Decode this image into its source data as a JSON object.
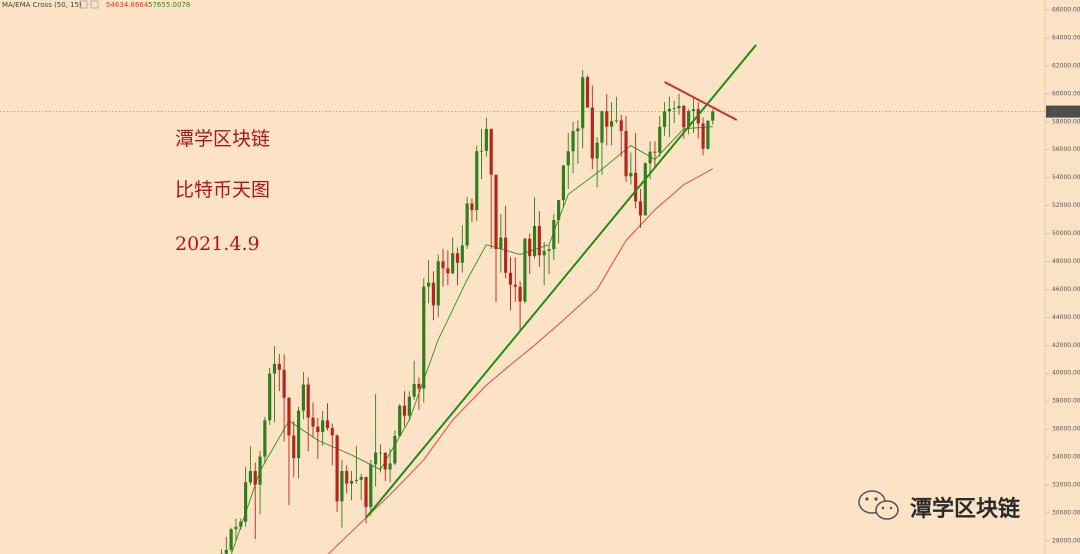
{
  "chart_data": {
    "type": "candlestick",
    "indicator": "MA/EMA Cross (50, 15)",
    "up_color": "#2f7d1f",
    "down_color": "#b3261e",
    "ylim": [
      27060,
      66716
    ],
    "xlim": [
      -46,
      171
    ],
    "yticks": [
      {
        "value": 28000,
        "label": "28000.00"
      },
      {
        "value": 30000,
        "label": "30000.00"
      },
      {
        "value": 32000,
        "label": "32000.00"
      },
      {
        "value": 34000,
        "label": "34000.00"
      },
      {
        "value": 36000,
        "label": "36000.00"
      },
      {
        "value": 38000,
        "label": "38000.00"
      },
      {
        "value": 40000,
        "label": "40000.00"
      },
      {
        "value": 42000,
        "label": "42000.00"
      },
      {
        "value": 44000,
        "label": "44000.00"
      },
      {
        "value": 46000,
        "label": "46000.00"
      },
      {
        "value": 48000,
        "label": "48000.00"
      },
      {
        "value": 50000,
        "label": "50000.00"
      },
      {
        "value": 52000,
        "label": "52000.00"
      },
      {
        "value": 54000,
        "label": "54000.00"
      },
      {
        "value": 56000,
        "label": "56000.00"
      },
      {
        "value": 58000,
        "label": "58000.00"
      },
      {
        "value": 60000,
        "label": "60000.00"
      },
      {
        "value": 62000,
        "label": "62000.00"
      },
      {
        "value": 64000,
        "label": "64000.00"
      },
      {
        "value": 66000,
        "label": "66000.00"
      }
    ],
    "open": [
      26280,
      27080,
      27360,
      28840,
      29000,
      29370,
      32190,
      33000,
      32020,
      34030,
      36630,
      39970,
      40670,
      40240,
      38240,
      35540,
      33920,
      37320,
      39190,
      36830,
      36180,
      35790,
      36630,
      36070,
      35550,
      30830,
      33000,
      32100,
      32290,
      32370,
      32570,
      30430,
      33470,
      34320,
      34320,
      33110,
      33540,
      35510,
      37680,
      36960,
      38320,
      39240,
      38900,
      46200,
      46480,
      44850,
      48010,
      47510,
      47150,
      48590,
      47910,
      49150,
      52150,
      51680,
      55890,
      55920,
      57490,
      54210,
      48890,
      49710,
      47190,
      46340,
      46190,
      45140,
      49630,
      48380,
      50540,
      48440,
      48760,
      48880,
      50970,
      52390,
      54880,
      55890,
      57330,
      57530,
      61190,
      59020,
      55370,
      56500,
      58760,
      57650,
      58040,
      58100,
      57350,
      54100,
      54340,
      52300,
      51290,
      55030,
      55860,
      55790,
      57630,
      58740,
      58920,
      58970,
      59130,
      57600,
      58760,
      58900,
      57880,
      56070,
      58080
    ],
    "high": [
      27390,
      28290,
      28940,
      29600,
      29600,
      33300,
      34780,
      33600,
      34440,
      36880,
      40380,
      41950,
      41380,
      41350,
      38300,
      36600,
      37600,
      40100,
      39700,
      37900,
      36800,
      37300,
      37850,
      36400,
      35600,
      33800,
      33400,
      33000,
      34800,
      32800,
      32600,
      33800,
      38500,
      34900,
      34300,
      34600,
      35900,
      37800,
      38700,
      38700,
      40900,
      39700,
      46800,
      48100,
      47300,
      48500,
      48900,
      48800,
      49700,
      49000,
      50600,
      52600,
      52500,
      56300,
      57500,
      58300,
      57500,
      54200,
      51400,
      52000,
      48300,
      48300,
      46600,
      49700,
      50000,
      52600,
      51600,
      49400,
      49200,
      51400,
      52400,
      54900,
      57200,
      58000,
      58100,
      61700,
      61300,
      60600,
      56900,
      58800,
      60000,
      59400,
      59800,
      58500,
      58400,
      55800,
      57200,
      53200,
      55100,
      56600,
      56600,
      58400,
      59400,
      59800,
      59500,
      60000,
      59200,
      58900,
      59800,
      59400,
      58300,
      58100,
      58900
    ],
    "low": [
      25990,
      26860,
      27200,
      28000,
      28800,
      29030,
      31990,
      28130,
      29900,
      33550,
      36300,
      36500,
      38720,
      35110,
      30550,
      32550,
      32470,
      36710,
      34400,
      35400,
      33850,
      34800,
      35900,
      33400,
      30070,
      28950,
      31400,
      30900,
      32100,
      30900,
      29240,
      29800,
      31900,
      32900,
      32300,
      32200,
      33400,
      35400,
      36200,
      36600,
      38100,
      37400,
      37900,
      45000,
      43800,
      44000,
      46200,
      46300,
      47100,
      46300,
      47200,
      48900,
      50800,
      50900,
      53900,
      55500,
      48900,
      45100,
      47200,
      46800,
      44500,
      45100,
      43100,
      45000,
      47100,
      48200,
      47600,
      46300,
      47100,
      48100,
      49300,
      51900,
      53200,
      54300,
      55000,
      56100,
      59000,
      54600,
      53300,
      54200,
      56300,
      56300,
      57900,
      55500,
      53700,
      53500,
      51800,
      50400,
      51300,
      53900,
      54700,
      55500,
      57000,
      56900,
      57900,
      58500,
      56800,
      57100,
      57200,
      56800,
      55600,
      56000,
      57800
    ],
    "close": [
      27080,
      27360,
      28840,
      29000,
      29370,
      32190,
      33000,
      32020,
      34030,
      36630,
      39970,
      40670,
      40240,
      38240,
      35540,
      33920,
      37320,
      39190,
      36830,
      36180,
      35790,
      36630,
      36070,
      35550,
      30830,
      33000,
      32100,
      32290,
      32370,
      32570,
      30430,
      33470,
      34320,
      34320,
      33110,
      33540,
      35510,
      37680,
      36960,
      38320,
      39240,
      38900,
      46200,
      46480,
      44850,
      48010,
      47510,
      47150,
      48590,
      47910,
      49150,
      52150,
      51680,
      55890,
      55920,
      57490,
      54210,
      48890,
      49710,
      47190,
      46340,
      46190,
      45140,
      49630,
      48380,
      50540,
      48440,
      48760,
      48880,
      50970,
      52390,
      54880,
      55890,
      57330,
      57530,
      61190,
      59020,
      55370,
      56500,
      58760,
      57650,
      58040,
      58100,
      57350,
      54100,
      54340,
      52300,
      51290,
      55030,
      55860,
      55790,
      57630,
      58740,
      58920,
      58970,
      59130,
      57600,
      58760,
      58900,
      57880,
      56070,
      58080,
      58727.03
    ],
    "series": [
      {
        "color": "#e2493c",
        "x": [
          22,
          30,
          36,
          42,
          48,
          55,
          60,
          65,
          71,
          78,
          84,
          90,
          96,
          102
        ],
        "values": [
          27000,
          29650,
          31650,
          33800,
          36650,
          39150,
          40600,
          42000,
          43800,
          46000,
          49500,
          51700,
          53500,
          54634.8664
        ]
      },
      {
        "color": "#3f9a2a",
        "x": [
          2,
          8,
          14,
          20,
          27,
          33,
          39,
          45,
          51,
          55,
          62,
          68,
          72,
          79,
          85,
          90,
          96,
          102
        ],
        "values": [
          27000,
          33000,
          36600,
          35200,
          34150,
          33100,
          36650,
          42400,
          46700,
          49200,
          48500,
          49200,
          52800,
          54600,
          56300,
          55300,
          57500,
          57655.0078
        ]
      }
    ],
    "trendlines": [
      {
        "color": "#1f8f14",
        "x": [
          30,
          111
        ],
        "values": [
          29650,
          63500
        ]
      },
      {
        "color": "#d42a2a",
        "x": [
          92,
          107
        ],
        "values": [
          60850,
          58130
        ]
      }
    ],
    "annotations": [
      "潭学区块链",
      "比特币天图",
      "2021.4.9"
    ],
    "watermark": "潭学区块链"
  }
}
